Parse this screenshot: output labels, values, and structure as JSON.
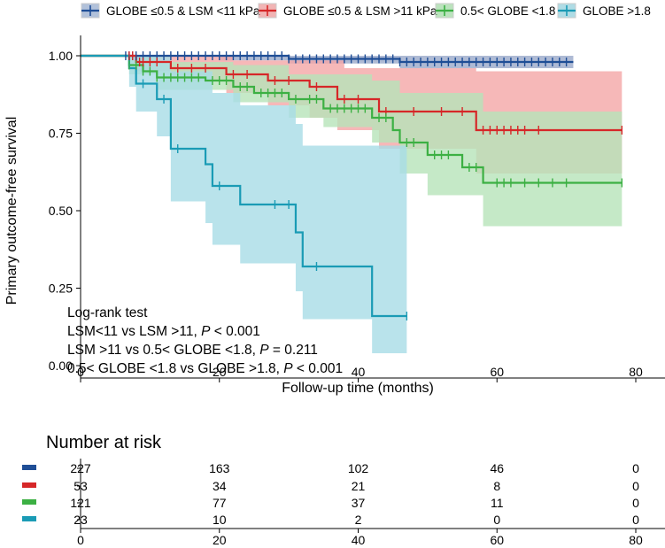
{
  "chart_data": {
    "type": "km_survival",
    "ylabel": "Primary outcome-free survival",
    "xlabel": "Follow-up time (months)",
    "x_ticks": [
      "0",
      "20",
      "40",
      "60",
      "80"
    ],
    "y_ticks": [
      "0.00",
      "0.25",
      "0.50",
      "0.75",
      "1.00"
    ],
    "xlim": [
      0,
      80
    ],
    "ylim": [
      0,
      1
    ],
    "legend": [
      {
        "label": "GLOBE ≤0.5 & LSM <11 kPa",
        "color": "#1f4e96"
      },
      {
        "label": "GLOBE ≤0.5 & LSM >11 kPa",
        "color": "#d62728"
      },
      {
        "label": "0.5< GLOBE <1.8",
        "color": "#3cb043"
      },
      {
        "label": "GLOBE >1.8",
        "color": "#1a9bb5"
      }
    ],
    "annotations": {
      "title": "Log-rank test",
      "line1": "LSM<11 vs LSM >11, ",
      "line1_p": "P",
      "line1_val": " < 0.001",
      "line2": "LSM >11 vs 0.5< GLOBE <1.8, ",
      "line2_p": "P",
      "line2_val": " = 0.211",
      "line3": "0.5< GLOBE <1.8 vs GLOBE >1.8, ",
      "line3_p": "P",
      "line3_val": " < 0.001"
    },
    "series": [
      {
        "name": "GLOBE ≤0.5 & LSM <11 kPa",
        "color": "#1f4e96",
        "fill": "#9aa9c9",
        "steps": [
          [
            0,
            1.0
          ],
          [
            6,
            1.0
          ],
          [
            30,
            0.99
          ],
          [
            46,
            0.98
          ],
          [
            71,
            0.98
          ]
        ],
        "ci_upper": [
          [
            0,
            1.0
          ],
          [
            71,
            1.0
          ]
        ],
        "ci_lower": [
          [
            0,
            1.0
          ],
          [
            6,
            1.0
          ],
          [
            20,
            0.985
          ],
          [
            30,
            0.975
          ],
          [
            46,
            0.96
          ],
          [
            71,
            0.96
          ]
        ],
        "censor": [
          6.5,
          7,
          7.5,
          8,
          9,
          10,
          11,
          12,
          13,
          14,
          15,
          16,
          17,
          18,
          19,
          20,
          21,
          22,
          23,
          24,
          25,
          26,
          27,
          28,
          29,
          30,
          31,
          32,
          33,
          34,
          35,
          36,
          37,
          38,
          39,
          40,
          41,
          42,
          43,
          44,
          45,
          46,
          47,
          48,
          49,
          50,
          51,
          52,
          53,
          54,
          55,
          56,
          57,
          58,
          59,
          60,
          61,
          62,
          63,
          64,
          65,
          66,
          67,
          68,
          69,
          70
        ]
      },
      {
        "name": "GLOBE ≤0.5 & LSM >11 kPa",
        "color": "#d62728",
        "fill": "#f4a6a6",
        "steps": [
          [
            0,
            1.0
          ],
          [
            7,
            1.0
          ],
          [
            8,
            0.98
          ],
          [
            12,
            0.98
          ],
          [
            13,
            0.96
          ],
          [
            20,
            0.96
          ],
          [
            21,
            0.94
          ],
          [
            26,
            0.94
          ],
          [
            27,
            0.92
          ],
          [
            32,
            0.92
          ],
          [
            33,
            0.9
          ],
          [
            36,
            0.9
          ],
          [
            37,
            0.86
          ],
          [
            42,
            0.86
          ],
          [
            43,
            0.82
          ],
          [
            56,
            0.82
          ],
          [
            57,
            0.76
          ],
          [
            78,
            0.76
          ]
        ],
        "ci_upper": [
          [
            0,
            1.0
          ],
          [
            21,
            1.0
          ],
          [
            22,
            0.985
          ],
          [
            37,
            0.985
          ],
          [
            38,
            0.96
          ],
          [
            56,
            0.96
          ],
          [
            57,
            0.95
          ],
          [
            78,
            0.95
          ]
        ],
        "ci_lower": [
          [
            0,
            1.0
          ],
          [
            8,
            0.95
          ],
          [
            13,
            0.92
          ],
          [
            21,
            0.88
          ],
          [
            27,
            0.84
          ],
          [
            33,
            0.8
          ],
          [
            37,
            0.76
          ],
          [
            43,
            0.7
          ],
          [
            57,
            0.62
          ],
          [
            78,
            0.62
          ]
        ],
        "censor": [
          7,
          7.5,
          8.5,
          9,
          10,
          11,
          14,
          16,
          18,
          22,
          24,
          28,
          30,
          34,
          38,
          40,
          44,
          48,
          52,
          55,
          58,
          59,
          60,
          61,
          62,
          63,
          64,
          66,
          78
        ]
      },
      {
        "name": "0.5< GLOBE <1.8",
        "color": "#3cb043",
        "fill": "#b7e4b9",
        "steps": [
          [
            0,
            1.0
          ],
          [
            6,
            1.0
          ],
          [
            7,
            0.97
          ],
          [
            9,
            0.95
          ],
          [
            11,
            0.93
          ],
          [
            18,
            0.92
          ],
          [
            22,
            0.9
          ],
          [
            25,
            0.88
          ],
          [
            30,
            0.86
          ],
          [
            35,
            0.83
          ],
          [
            42,
            0.8
          ],
          [
            45,
            0.76
          ],
          [
            46,
            0.72
          ],
          [
            50,
            0.68
          ],
          [
            55,
            0.64
          ],
          [
            58,
            0.59
          ],
          [
            78,
            0.59
          ]
        ],
        "ci_upper": [
          [
            0,
            1.0
          ],
          [
            7,
            1.0
          ],
          [
            11,
            0.98
          ],
          [
            22,
            0.97
          ],
          [
            30,
            0.94
          ],
          [
            42,
            0.92
          ],
          [
            46,
            0.88
          ],
          [
            58,
            0.82
          ],
          [
            78,
            0.79
          ]
        ],
        "ci_lower": [
          [
            0,
            1.0
          ],
          [
            7,
            0.94
          ],
          [
            11,
            0.89
          ],
          [
            22,
            0.85
          ],
          [
            30,
            0.8
          ],
          [
            35,
            0.77
          ],
          [
            42,
            0.72
          ],
          [
            46,
            0.62
          ],
          [
            50,
            0.55
          ],
          [
            58,
            0.45
          ],
          [
            78,
            0.45
          ]
        ],
        "censor": [
          7,
          8,
          9,
          10,
          11,
          12,
          13,
          14,
          15,
          16,
          17,
          19,
          20,
          21,
          23,
          24,
          26,
          27,
          28,
          29,
          31,
          33,
          34,
          36,
          37,
          38,
          39,
          40,
          41,
          43,
          44,
          47,
          48,
          51,
          52,
          53,
          56,
          57,
          60,
          61,
          62,
          64,
          66,
          68,
          70,
          78
        ]
      },
      {
        "name": "GLOBE >1.8",
        "color": "#1a9bb5",
        "fill": "#a8dce6",
        "steps": [
          [
            0,
            1.0
          ],
          [
            6,
            1.0
          ],
          [
            7,
            0.96
          ],
          [
            8,
            0.91
          ],
          [
            11,
            0.86
          ],
          [
            13,
            0.7
          ],
          [
            18,
            0.65
          ],
          [
            19,
            0.58
          ],
          [
            23,
            0.52
          ],
          [
            31,
            0.43
          ],
          [
            32,
            0.32
          ],
          [
            42,
            0.16
          ],
          [
            47,
            0.16
          ]
        ],
        "ci_upper": [
          [
            0,
            1.0
          ],
          [
            8,
            1.0
          ],
          [
            13,
            0.95
          ],
          [
            19,
            0.88
          ],
          [
            23,
            0.84
          ],
          [
            31,
            0.78
          ],
          [
            32,
            0.71
          ],
          [
            42,
            0.71
          ],
          [
            47,
            0.71
          ]
        ],
        "ci_lower": [
          [
            0,
            1.0
          ],
          [
            7,
            0.9
          ],
          [
            8,
            0.82
          ],
          [
            11,
            0.74
          ],
          [
            13,
            0.53
          ],
          [
            18,
            0.46
          ],
          [
            19,
            0.39
          ],
          [
            23,
            0.33
          ],
          [
            31,
            0.24
          ],
          [
            32,
            0.15
          ],
          [
            42,
            0.04
          ],
          [
            47,
            0.04
          ]
        ],
        "censor": [
          9,
          12,
          14,
          20,
          28,
          30,
          34,
          47
        ]
      }
    ],
    "risk_table": {
      "title": "Number at risk",
      "x_ticks": [
        "0",
        "20",
        "40",
        "60",
        "80"
      ],
      "rows": [
        {
          "color": "#1f4e96",
          "values": [
            "227",
            "163",
            "102",
            "46",
            "0"
          ]
        },
        {
          "color": "#d62728",
          "values": [
            "53",
            "34",
            "21",
            "8",
            "0"
          ]
        },
        {
          "color": "#3cb043",
          "values": [
            "121",
            "77",
            "37",
            "11",
            "0"
          ]
        },
        {
          "color": "#1a9bb5",
          "values": [
            "23",
            "10",
            "2",
            "0",
            "0"
          ]
        }
      ]
    }
  }
}
